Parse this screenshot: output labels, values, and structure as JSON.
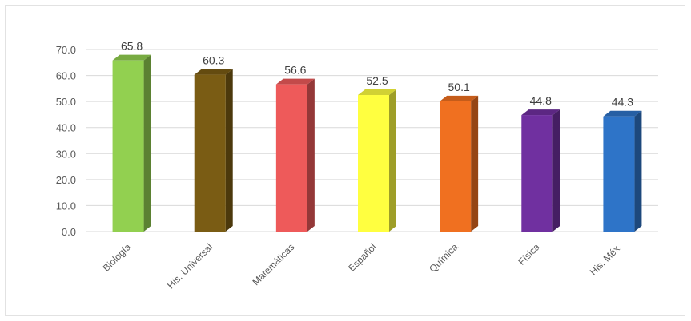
{
  "chart_data": {
    "type": "bar",
    "style": "3d-column",
    "title": "",
    "xlabel": "",
    "ylabel": "",
    "categories": [
      "Biología",
      "His. Universal",
      "Matemáticas",
      "Español",
      "Química",
      "Física",
      "His. Méx."
    ],
    "values": [
      65.8,
      60.3,
      56.6,
      52.5,
      50.1,
      44.8,
      44.3
    ],
    "value_labels": [
      "65.8",
      "60.3",
      "56.6",
      "52.5",
      "50.1",
      "44.8",
      "44.3"
    ],
    "ylim": [
      0,
      70
    ],
    "yticks": [
      0,
      10,
      20,
      30,
      40,
      50,
      60,
      70
    ],
    "ytick_labels": [
      "0.0",
      "10.0",
      "20.0",
      "30.0",
      "40.0",
      "50.0",
      "60.0",
      "70.0"
    ],
    "grid": true,
    "legend": "none",
    "colors": [
      "#92d050",
      "#7a5c14",
      "#ee5a5a",
      "#ffff40",
      "#f07020",
      "#7030a0",
      "#2e74c8"
    ]
  }
}
